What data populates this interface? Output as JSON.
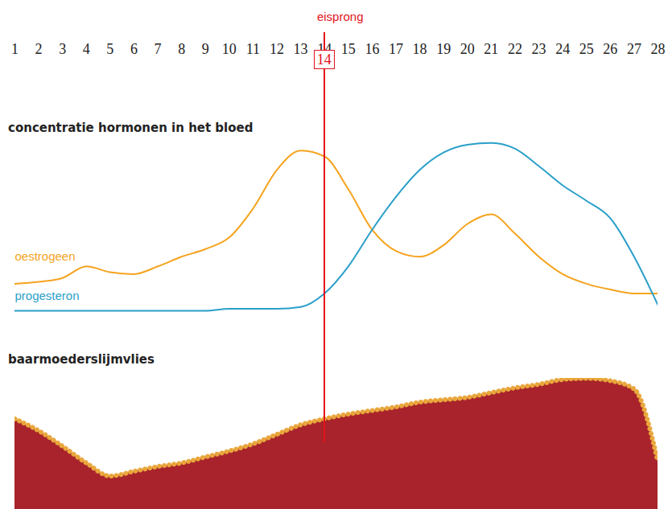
{
  "chart_data": [
    {
      "type": "line",
      "title": "concentratie hormonen in het bloed",
      "x": [
        1,
        2,
        3,
        4,
        5,
        6,
        7,
        8,
        9,
        10,
        11,
        12,
        13,
        14,
        15,
        16,
        17,
        18,
        19,
        20,
        21,
        22,
        23,
        24,
        25,
        26,
        27,
        28
      ],
      "xlim": [
        1,
        28
      ],
      "xticks": [
        1,
        2,
        3,
        4,
        5,
        6,
        7,
        8,
        9,
        10,
        11,
        12,
        13,
        14,
        15,
        16,
        17,
        18,
        19,
        20,
        21,
        22,
        23,
        24,
        25,
        26,
        27,
        28
      ],
      "ylim": [
        0,
        100
      ],
      "yticks": [],
      "tick_labels": "x",
      "annotation": {
        "text": "eisprong",
        "x": 14
      },
      "series": [
        {
          "name": "oestrogeen",
          "color": "#f5a31e",
          "values": [
            24,
            25,
            27,
            33,
            30,
            29,
            33,
            38,
            42,
            48,
            63,
            83,
            93,
            90,
            73,
            52,
            41,
            38,
            44,
            55,
            60,
            50,
            38,
            29,
            24,
            21,
            19,
            19
          ]
        },
        {
          "name": "progesteron",
          "color": "#2b9fc9",
          "values": [
            10,
            10,
            10,
            10,
            10,
            10,
            10,
            10,
            10,
            11,
            11,
            11,
            12,
            19,
            33,
            52,
            69,
            83,
            92,
            96,
            97,
            94,
            85,
            75,
            67,
            58,
            38,
            13
          ]
        }
      ]
    },
    {
      "type": "area",
      "title": "baarmoederslijmvlies",
      "x": [
        1,
        2,
        3,
        4,
        5,
        6,
        7,
        8,
        9,
        10,
        11,
        12,
        13,
        14,
        15,
        16,
        17,
        18,
        19,
        20,
        21,
        22,
        23,
        24,
        25,
        26,
        27,
        28
      ],
      "xlim": [
        1,
        28
      ],
      "ylim": [
        0,
        110
      ],
      "yticks": [],
      "tick_labels": false,
      "color": "#a8232b",
      "values": [
        76,
        66,
        53,
        39,
        28,
        32,
        36,
        39,
        44,
        49,
        55,
        63,
        71,
        76,
        80,
        83,
        86,
        90,
        92,
        94,
        98,
        102,
        105,
        109,
        110,
        108,
        101,
        40
      ]
    }
  ]
}
